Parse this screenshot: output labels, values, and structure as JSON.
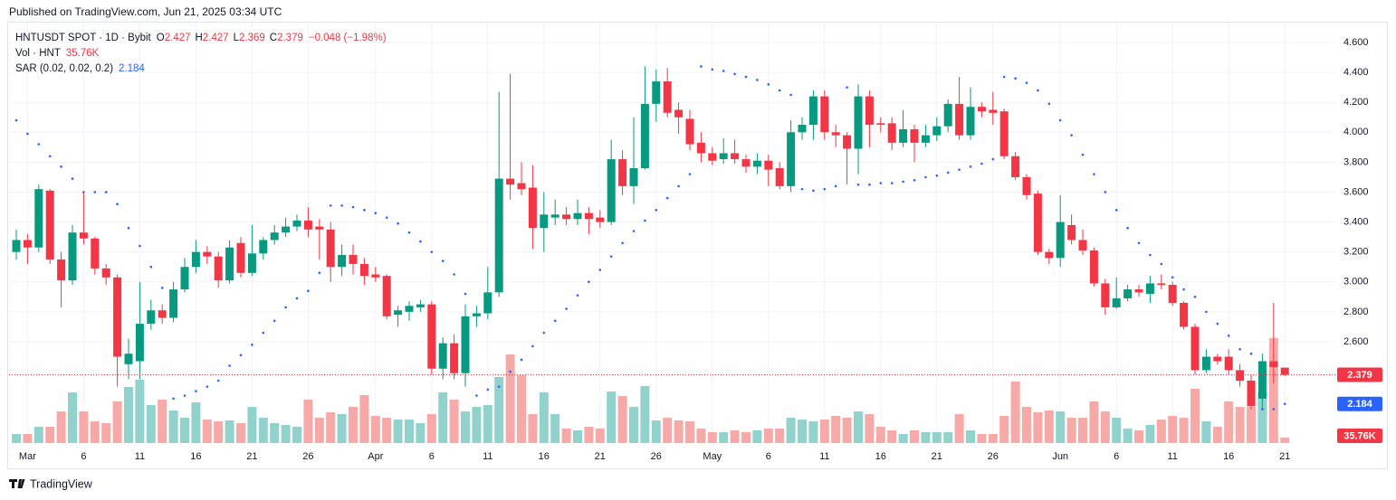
{
  "published": "Published on TradingView.com, Jun 21, 2025 03:34 UTC",
  "footer": "TradingView",
  "chart_data": {
    "type": "candlestick",
    "legend": {
      "symbol": "HNTUSDT SPOT · 1D · Bybit",
      "ohlc_labels": [
        "O",
        "H",
        "L",
        "C"
      ],
      "change": "−0.048 (−1.98%)",
      "volume_name": "Vol · HNT",
      "sar_name": "SAR (0.02, 0.02, 0.2)"
    },
    "up_color": "#089981",
    "down_color": "#f23645",
    "volume_up_color": "#92d2cc",
    "volume_down_color": "#f7a9a7",
    "sar_color": "#2962ff",
    "x": [
      "2025-02-28",
      "2025-03-01",
      "2025-03-02",
      "2025-03-03",
      "2025-03-04",
      "2025-03-05",
      "2025-03-06",
      "2025-03-07",
      "2025-03-08",
      "2025-03-09",
      "2025-03-10",
      "2025-03-11",
      "2025-03-12",
      "2025-03-13",
      "2025-03-14",
      "2025-03-15",
      "2025-03-16",
      "2025-03-17",
      "2025-03-18",
      "2025-03-19",
      "2025-03-20",
      "2025-03-21",
      "2025-03-22",
      "2025-03-23",
      "2025-03-24",
      "2025-03-25",
      "2025-03-26",
      "2025-03-27",
      "2025-03-28",
      "2025-03-29",
      "2025-03-30",
      "2025-03-31",
      "2025-04-01",
      "2025-04-02",
      "2025-04-03",
      "2025-04-04",
      "2025-04-05",
      "2025-04-06",
      "2025-04-07",
      "2025-04-08",
      "2025-04-09",
      "2025-04-10",
      "2025-04-11",
      "2025-04-12",
      "2025-04-13",
      "2025-04-14",
      "2025-04-15",
      "2025-04-16",
      "2025-04-17",
      "2025-04-18",
      "2025-04-19",
      "2025-04-20",
      "2025-04-21",
      "2025-04-22",
      "2025-04-23",
      "2025-04-24",
      "2025-04-25",
      "2025-04-26",
      "2025-04-27",
      "2025-04-28",
      "2025-04-29",
      "2025-04-30",
      "2025-05-01",
      "2025-05-02",
      "2025-05-03",
      "2025-05-04",
      "2025-05-05",
      "2025-05-06",
      "2025-05-07",
      "2025-05-08",
      "2025-05-09",
      "2025-05-10",
      "2025-05-11",
      "2025-05-12",
      "2025-05-13",
      "2025-05-14",
      "2025-05-15",
      "2025-05-16",
      "2025-05-17",
      "2025-05-18",
      "2025-05-19",
      "2025-05-20",
      "2025-05-21",
      "2025-05-22",
      "2025-05-23",
      "2025-05-24",
      "2025-05-25",
      "2025-05-26",
      "2025-05-27",
      "2025-05-28",
      "2025-05-29",
      "2025-05-30",
      "2025-05-31",
      "2025-06-01",
      "2025-06-02",
      "2025-06-03",
      "2025-06-04",
      "2025-06-05",
      "2025-06-06",
      "2025-06-07",
      "2025-06-08",
      "2025-06-09",
      "2025-06-10",
      "2025-06-11",
      "2025-06-12",
      "2025-06-13",
      "2025-06-14",
      "2025-06-15",
      "2025-06-16",
      "2025-06-17",
      "2025-06-18",
      "2025-06-19",
      "2025-06-20",
      "2025-06-21"
    ],
    "open": [
      3.2,
      3.28,
      3.23,
      3.61,
      3.15,
      3.01,
      3.33,
      3.29,
      3.09,
      3.03,
      2.45,
      2.47,
      2.72,
      2.81,
      2.76,
      2.95,
      3.1,
      3.2,
      3.17,
      3.01,
      3.26,
      3.06,
      3.19,
      3.28,
      3.33,
      3.37,
      3.41,
      3.37,
      3.35,
      3.1,
      3.18,
      3.12,
      3.05,
      3.04,
      2.78,
      2.8,
      2.83,
      2.85,
      2.42,
      2.59,
      2.39,
      2.77,
      2.79,
      2.93,
      3.69,
      3.66,
      3.63,
      3.36,
      3.43,
      3.45,
      3.42,
      3.46,
      3.43,
      3.4,
      3.82,
      3.64,
      3.76,
      4.19,
      4.34,
      4.15,
      4.09,
      3.93,
      3.86,
      3.82,
      3.86,
      3.82,
      3.77,
      3.81,
      3.76,
      3.64,
      4.0,
      4.05,
      4.24,
      4.0,
      3.98,
      3.89,
      4.24,
      4.06,
      4.06,
      3.93,
      4.02,
      3.93,
      3.98,
      4.04,
      4.19,
      3.98,
      4.17,
      4.15,
      4.14,
      3.84,
      3.7,
      3.59,
      3.2,
      3.16,
      3.38,
      3.28,
      3.21,
      2.99,
      2.83,
      2.89,
      2.95,
      2.92,
      2.99,
      2.98,
      2.86,
      2.7,
      2.41,
      2.5,
      2.5,
      2.41,
      2.34,
      2.22,
      2.47,
      2.427
    ],
    "high": [
      3.35,
      3.32,
      3.65,
      3.62,
      3.2,
      3.38,
      3.6,
      3.3,
      3.12,
      3.05,
      2.62,
      3.0,
      2.88,
      2.85,
      3.0,
      3.16,
      3.28,
      3.24,
      3.2,
      3.28,
      3.3,
      3.38,
      3.3,
      3.38,
      3.43,
      3.45,
      3.5,
      3.42,
      3.4,
      3.25,
      3.25,
      3.16,
      3.1,
      3.05,
      2.84,
      2.87,
      2.88,
      2.87,
      2.63,
      2.65,
      2.85,
      2.84,
      3.1,
      4.27,
      4.39,
      3.8,
      3.78,
      3.6,
      3.55,
      3.5,
      3.55,
      3.5,
      3.48,
      3.95,
      3.88,
      4.1,
      4.44,
      4.42,
      4.43,
      4.2,
      4.15,
      4.0,
      3.9,
      3.96,
      3.95,
      3.85,
      3.86,
      3.85,
      3.8,
      4.08,
      4.1,
      4.28,
      4.28,
      4.05,
      4.0,
      4.32,
      4.28,
      4.1,
      4.1,
      4.15,
      4.05,
      4.05,
      4.1,
      4.22,
      4.37,
      4.3,
      4.2,
      4.27,
      4.16,
      3.87,
      3.72,
      3.61,
      3.22,
      3.58,
      3.45,
      3.35,
      3.23,
      3.02,
      3.03,
      2.98,
      2.98,
      3.04,
      3.05,
      3.0,
      2.87,
      2.72,
      2.55,
      2.52,
      2.55,
      2.45,
      2.38,
      2.52,
      2.86,
      2.427
    ],
    "low": [
      3.15,
      3.12,
      3.2,
      3.12,
      2.83,
      2.98,
      3.25,
      3.05,
      2.98,
      2.3,
      2.35,
      2.35,
      2.68,
      2.72,
      2.73,
      2.93,
      3.06,
      3.12,
      2.96,
      2.99,
      3.03,
      3.04,
      3.15,
      3.25,
      3.3,
      3.34,
      3.3,
      3.15,
      3.0,
      3.04,
      3.05,
      2.98,
      3.0,
      2.75,
      2.7,
      2.74,
      2.8,
      2.38,
      2.35,
      2.35,
      2.3,
      2.7,
      2.75,
      2.9,
      3.55,
      3.58,
      3.22,
      3.2,
      3.38,
      3.38,
      3.38,
      3.32,
      3.36,
      3.38,
      3.58,
      3.52,
      3.75,
      4.07,
      4.1,
      3.99,
      3.88,
      3.8,
      3.78,
      3.79,
      3.79,
      3.73,
      3.72,
      3.64,
      3.62,
      3.6,
      3.95,
      3.95,
      3.95,
      3.9,
      3.65,
      3.72,
      3.9,
      4.0,
      3.88,
      3.9,
      3.8,
      3.9,
      3.94,
      4.0,
      3.95,
      3.95,
      4.1,
      4.05,
      3.82,
      3.68,
      3.55,
      3.18,
      3.12,
      3.1,
      3.25,
      3.18,
      2.97,
      2.78,
      2.82,
      2.87,
      2.9,
      2.86,
      2.95,
      2.84,
      2.68,
      2.38,
      2.39,
      2.45,
      2.38,
      2.3,
      2.15,
      2.16,
      2.32,
      2.369
    ],
    "close": [
      3.28,
      3.23,
      3.62,
      3.15,
      3.01,
      3.33,
      3.29,
      3.09,
      3.03,
      2.5,
      2.52,
      2.72,
      2.81,
      2.76,
      2.95,
      3.1,
      3.2,
      3.17,
      3.01,
      3.23,
      3.06,
      3.19,
      3.28,
      3.33,
      3.37,
      3.41,
      3.35,
      3.35,
      3.1,
      3.18,
      3.12,
      3.04,
      3.03,
      2.77,
      2.81,
      2.84,
      2.85,
      2.42,
      2.59,
      2.39,
      2.77,
      2.79,
      2.93,
      3.69,
      3.65,
      3.62,
      3.36,
      3.45,
      3.45,
      3.42,
      3.46,
      3.42,
      3.4,
      3.82,
      3.64,
      3.76,
      4.19,
      4.34,
      4.13,
      4.1,
      3.92,
      3.86,
      3.81,
      3.86,
      3.82,
      3.77,
      3.81,
      3.75,
      3.64,
      4.0,
      4.05,
      4.24,
      4.0,
      3.98,
      3.89,
      4.24,
      4.05,
      4.05,
      3.93,
      4.02,
      3.93,
      3.98,
      4.04,
      4.19,
      3.98,
      4.17,
      4.14,
      4.13,
      3.84,
      3.7,
      3.58,
      3.2,
      3.16,
      3.4,
      3.28,
      3.21,
      2.99,
      2.83,
      2.89,
      2.95,
      2.93,
      2.99,
      2.98,
      2.86,
      2.7,
      2.41,
      2.5,
      2.47,
      2.41,
      2.34,
      2.17,
      2.47,
      2.43,
      2.379
    ],
    "volume": [
      60000,
      60000,
      108000,
      108000,
      210000,
      336000,
      210000,
      144000,
      132000,
      276000,
      372000,
      420000,
      252000,
      288000,
      216000,
      168000,
      270000,
      156000,
      144000,
      150000,
      132000,
      240000,
      168000,
      132000,
      120000,
      108000,
      288000,
      168000,
      204000,
      192000,
      240000,
      318000,
      180000,
      168000,
      156000,
      156000,
      132000,
      192000,
      336000,
      288000,
      210000,
      240000,
      252000,
      438000,
      588000,
      450000,
      192000,
      336000,
      192000,
      96000,
      84000,
      108000,
      96000,
      342000,
      312000,
      240000,
      378000,
      150000,
      168000,
      150000,
      144000,
      96000,
      72000,
      72000,
      84000,
      72000,
      84000,
      96000,
      96000,
      168000,
      156000,
      144000,
      156000,
      180000,
      168000,
      210000,
      192000,
      108000,
      84000,
      60000,
      84000,
      72000,
      72000,
      72000,
      192000,
      84000,
      60000,
      60000,
      180000,
      408000,
      240000,
      204000,
      216000,
      210000,
      168000,
      168000,
      276000,
      210000,
      168000,
      96000,
      84000,
      120000,
      156000,
      180000,
      168000,
      360000,
      144000,
      108000,
      276000,
      240000,
      240000,
      336000,
      696000,
      35760
    ],
    "volume_label": "35.76K",
    "sar": [
      4.08,
      3.99,
      3.92,
      3.84,
      3.77,
      3.69,
      3.6,
      3.6,
      3.6,
      3.52,
      3.36,
      3.24,
      3.1,
      2.96,
      2.22,
      2.24,
      2.27,
      2.3,
      2.34,
      2.44,
      2.51,
      2.58,
      2.66,
      2.74,
      2.83,
      2.89,
      2.94,
      3.06,
      3.51,
      3.51,
      3.5,
      3.48,
      3.46,
      3.43,
      3.39,
      3.33,
      3.27,
      3.2,
      3.14,
      3.05,
      2.92,
      2.24,
      2.28,
      2.3,
      2.4,
      2.48,
      2.57,
      2.66,
      2.74,
      2.82,
      2.91,
      3.0,
      3.08,
      3.17,
      3.26,
      3.34,
      3.41,
      3.48,
      3.56,
      3.64,
      3.72,
      4.44,
      4.42,
      4.41,
      4.39,
      4.37,
      4.35,
      4.32,
      4.28,
      4.25,
      3.62,
      3.61,
      3.62,
      3.64,
      4.3,
      3.65,
      3.65,
      3.66,
      3.66,
      3.67,
      3.68,
      3.7,
      3.71,
      3.73,
      3.75,
      3.77,
      3.79,
      3.82,
      4.37,
      4.36,
      4.33,
      4.28,
      4.19,
      4.08,
      3.98,
      3.85,
      3.72,
      3.6,
      3.48,
      3.36,
      3.26,
      3.18,
      3.12,
      3.03,
      2.95,
      2.9,
      2.8,
      2.72,
      2.64,
      2.55,
      2.52,
      2.15,
      2.15,
      2.184
    ],
    "ylim": [
      1.923,
      4.739
    ],
    "yticks": [
      {
        "value": 4.6,
        "label": "4.600"
      },
      {
        "value": 4.4,
        "label": "4.400"
      },
      {
        "value": 4.2,
        "label": "4.200"
      },
      {
        "value": 4.0,
        "label": "4.000"
      },
      {
        "value": 3.8,
        "label": "3.800"
      },
      {
        "value": 3.6,
        "label": "3.600"
      },
      {
        "value": 3.4,
        "label": "3.400"
      },
      {
        "value": 3.2,
        "label": "3.200"
      },
      {
        "value": 3.0,
        "label": "3.000"
      },
      {
        "value": 2.8,
        "label": "2.800"
      },
      {
        "value": 2.6,
        "label": "2.600"
      }
    ],
    "xticks": [
      {
        "value": "2025-03-01",
        "label": "Mar"
      },
      {
        "value": "2025-03-06",
        "label": "6"
      },
      {
        "value": "2025-03-11",
        "label": "11"
      },
      {
        "value": "2025-03-16",
        "label": "16"
      },
      {
        "value": "2025-03-21",
        "label": "21"
      },
      {
        "value": "2025-03-26",
        "label": "26"
      },
      {
        "value": "2025-04-01",
        "label": "Apr"
      },
      {
        "value": "2025-04-06",
        "label": "6"
      },
      {
        "value": "2025-04-11",
        "label": "11"
      },
      {
        "value": "2025-04-16",
        "label": "16"
      },
      {
        "value": "2025-04-21",
        "label": "21"
      },
      {
        "value": "2025-04-26",
        "label": "26"
      },
      {
        "value": "2025-05-01",
        "label": "May"
      },
      {
        "value": "2025-05-06",
        "label": "6"
      },
      {
        "value": "2025-05-11",
        "label": "11"
      },
      {
        "value": "2025-05-16",
        "label": "16"
      },
      {
        "value": "2025-05-21",
        "label": "21"
      },
      {
        "value": "2025-05-26",
        "label": "26"
      },
      {
        "value": "2025-06-01",
        "label": "Jun"
      },
      {
        "value": "2025-06-06",
        "label": "6"
      },
      {
        "value": "2025-06-11",
        "label": "11"
      },
      {
        "value": "2025-06-16",
        "label": "16"
      },
      {
        "value": "2025-06-21",
        "label": "21"
      }
    ],
    "grid": true
  }
}
